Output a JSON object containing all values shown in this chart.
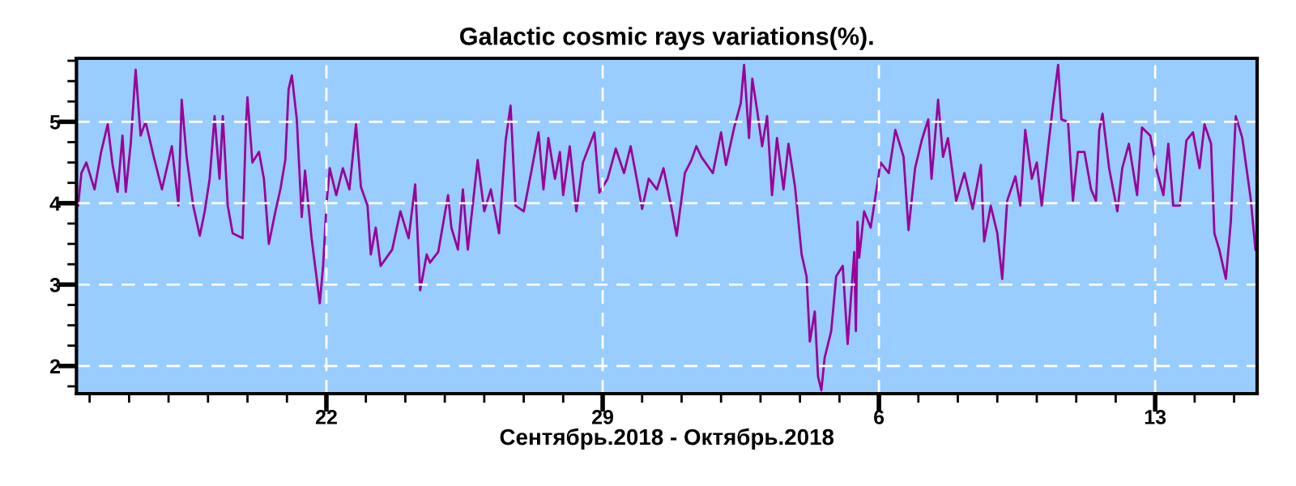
{
  "chart_data": {
    "type": "line",
    "title": "Galactic cosmic rays variations(%).",
    "xlabel": "Сентябрь.2018 - Октябрь.2018",
    "xlim": [
      "2018-09-15T16:00",
      "2018-10-15T14:00"
    ],
    "ylim": [
      1.66,
      5.78
    ],
    "xticks": [
      {
        "value": "2018-09-16",
        "label": null
      },
      {
        "value": "2018-09-17",
        "label": null
      },
      {
        "value": "2018-09-18",
        "label": null
      },
      {
        "value": "2018-09-19",
        "label": null
      },
      {
        "value": "2018-09-20",
        "label": null
      },
      {
        "value": "2018-09-21",
        "label": null
      },
      {
        "value": "2018-09-22",
        "label": "22"
      },
      {
        "value": "2018-09-23",
        "label": null
      },
      {
        "value": "2018-09-24",
        "label": null
      },
      {
        "value": "2018-09-25",
        "label": null
      },
      {
        "value": "2018-09-26",
        "label": null
      },
      {
        "value": "2018-09-27",
        "label": null
      },
      {
        "value": "2018-09-28",
        "label": null
      },
      {
        "value": "2018-09-29",
        "label": "29"
      },
      {
        "value": "2018-09-30",
        "label": null
      },
      {
        "value": "2018-10-01",
        "label": null
      },
      {
        "value": "2018-10-02",
        "label": null
      },
      {
        "value": "2018-10-03",
        "label": null
      },
      {
        "value": "2018-10-04",
        "label": null
      },
      {
        "value": "2018-10-05",
        "label": null
      },
      {
        "value": "2018-10-06",
        "label": "6"
      },
      {
        "value": "2018-10-07",
        "label": null
      },
      {
        "value": "2018-10-08",
        "label": null
      },
      {
        "value": "2018-10-09",
        "label": null
      },
      {
        "value": "2018-10-10",
        "label": null
      },
      {
        "value": "2018-10-11",
        "label": null
      },
      {
        "value": "2018-10-12",
        "label": null
      },
      {
        "value": "2018-10-13",
        "label": "13"
      },
      {
        "value": "2018-10-14",
        "label": null
      },
      {
        "value": "2018-10-15",
        "label": null
      }
    ],
    "yticks": [
      {
        "value": 1.75,
        "label": null
      },
      2,
      {
        "value": 2.25,
        "label": null
      },
      {
        "value": 2.5,
        "label": null
      },
      {
        "value": 2.75,
        "label": null
      },
      3,
      {
        "value": 3.25,
        "label": null
      },
      {
        "value": 3.5,
        "label": null
      },
      {
        "value": 3.75,
        "label": null
      },
      4,
      {
        "value": 4.25,
        "label": null
      },
      {
        "value": 4.5,
        "label": null
      },
      {
        "value": 4.75,
        "label": null
      },
      5,
      {
        "value": 5.25,
        "label": null
      },
      {
        "value": 5.5,
        "label": null
      },
      {
        "value": 5.75,
        "label": null
      }
    ],
    "grid": true,
    "line_style": "solid",
    "marker": "none",
    "series": [
      {
        "color": "#990099",
        "x": [
          "2018-09-15T17:00",
          "2018-09-15T19:00",
          "2018-09-15T22:00",
          "2018-09-16T03:00",
          "2018-09-16T07:00",
          "2018-09-16T11:00",
          "2018-09-16T14:00",
          "2018-09-16T17:00",
          "2018-09-16T20:00",
          "2018-09-16T22:00",
          "2018-09-17T01:00",
          "2018-09-17T04:00",
          "2018-09-17T07:00",
          "2018-09-17T10:00",
          "2018-09-17T12:00",
          "2018-09-17T15:00",
          "2018-09-17T20:00",
          "2018-09-18T02:00",
          "2018-09-18T06:00",
          "2018-09-18T08:00",
          "2018-09-18T11:00",
          "2018-09-18T15:00",
          "2018-09-18T19:00",
          "2018-09-18T22:00",
          "2018-09-19T01:00",
          "2018-09-19T04:00",
          "2018-09-19T07:00",
          "2018-09-19T09:00",
          "2018-09-19T12:00",
          "2018-09-19T15:00",
          "2018-09-19T21:00",
          "2018-09-19T23:00",
          "2018-09-20T00:00",
          "2018-09-20T03:00",
          "2018-09-20T07:00",
          "2018-09-20T10:00",
          "2018-09-20T13:00",
          "2018-09-20T17:00",
          "2018-09-20T20:00",
          "2018-09-20T23:00",
          "2018-09-21T01:00",
          "2018-09-21T03:00",
          "2018-09-21T06:00",
          "2018-09-21T09:00",
          "2018-09-21T11:00",
          "2018-09-21T15:00",
          "2018-09-21T20:00",
          "2018-09-21T22:00",
          "2018-09-22T00:00",
          "2018-09-22T02:00",
          "2018-09-22T06:00",
          "2018-09-22T10:00",
          "2018-09-22T14:00",
          "2018-09-22T18:00",
          "2018-09-22T21:00",
          "2018-09-23T01:00",
          "2018-09-23T03:00",
          "2018-09-23T06:00",
          "2018-09-23T09:00",
          "2018-09-23T16:00",
          "2018-09-23T21:00",
          "2018-09-24T02:00",
          "2018-09-24T06:00",
          "2018-09-24T09:00",
          "2018-09-24T13:00",
          "2018-09-24T15:00",
          "2018-09-24T20:00",
          "2018-09-25T02:00",
          "2018-09-25T04:00",
          "2018-09-25T08:00",
          "2018-09-25T11:00",
          "2018-09-25T14:00",
          "2018-09-25T20:00",
          "2018-09-26T00:00",
          "2018-09-26T04:00",
          "2018-09-26T09:00",
          "2018-09-26T13:00",
          "2018-09-26T16:00",
          "2018-09-26T19:00",
          "2018-09-27T00:00",
          "2018-09-27T05:00",
          "2018-09-27T09:00",
          "2018-09-27T12:00",
          "2018-09-27T15:00",
          "2018-09-27T19:00",
          "2018-09-27T22:00",
          "2018-09-28T00:00",
          "2018-09-28T04:00",
          "2018-09-28T08:00",
          "2018-09-28T12:00",
          "2018-09-28T19:00",
          "2018-09-28T22:00",
          "2018-09-29T03:00",
          "2018-09-29T08:00",
          "2018-09-29T13:00",
          "2018-09-29T17:00",
          "2018-09-29T21:00",
          "2018-09-30T00:00",
          "2018-09-30T04:00",
          "2018-09-30T09:00",
          "2018-09-30T13:00",
          "2018-09-30T18:00",
          "2018-09-30T21:00",
          "2018-10-01T02:00",
          "2018-10-01T06:00",
          "2018-10-01T09:00",
          "2018-10-01T12:00",
          "2018-10-01T19:00",
          "2018-10-02T00:00",
          "2018-10-02T03:00",
          "2018-10-02T08:00",
          "2018-10-02T12:00",
          "2018-10-02T14:00",
          "2018-10-02T17:00",
          "2018-10-02T19:00",
          "2018-10-02T22:00",
          "2018-10-03T01:00",
          "2018-10-03T04:00",
          "2018-10-03T07:00",
          "2018-10-03T10:00",
          "2018-10-03T14:00",
          "2018-10-03T17:00",
          "2018-10-03T21:00",
          "2018-10-04T01:00",
          "2018-10-04T04:00",
          "2018-10-04T06:00",
          "2018-10-04T09:00",
          "2018-10-04T11:00",
          "2018-10-04T13:00",
          "2018-10-04T15:00",
          "2018-10-04T19:00",
          "2018-10-04T22:00",
          "2018-10-05T02:00",
          "2018-10-05T05:00",
          "2018-10-05T09:00",
          "2018-10-05T10:00",
          "2018-10-05T11:00",
          "2018-10-05T12:00",
          "2018-10-05T15:00",
          "2018-10-05T19:00",
          "2018-10-05T22:00",
          "2018-10-06T01:00",
          "2018-10-06T06:00",
          "2018-10-06T10:00",
          "2018-10-06T15:00",
          "2018-10-06T18:00",
          "2018-10-06T22:00",
          "2018-10-07T02:00",
          "2018-10-07T06:00",
          "2018-10-07T08:00",
          "2018-10-07T12:00",
          "2018-10-07T15:00",
          "2018-10-07T18:00",
          "2018-10-07T23:00",
          "2018-10-08T04:00",
          "2018-10-08T09:00",
          "2018-10-08T14:00",
          "2018-10-08T16:00",
          "2018-10-08T20:00",
          "2018-10-09T00:00",
          "2018-10-09T03:00",
          "2018-10-09T06:00",
          "2018-10-09T11:00",
          "2018-10-09T14:00",
          "2018-10-09T17:00",
          "2018-10-09T21:00",
          "2018-10-10T00:00",
          "2018-10-10T03:00",
          "2018-10-10T07:00",
          "2018-10-10T10:00",
          "2018-10-10T13:00",
          "2018-10-10T15:00",
          "2018-10-10T19:00",
          "2018-10-10T22:00",
          "2018-10-11T01:00",
          "2018-10-11T05:00",
          "2018-10-11T09:00",
          "2018-10-11T12:00",
          "2018-10-11T14:00",
          "2018-10-11T16:00",
          "2018-10-11T20:00",
          "2018-10-12T01:00",
          "2018-10-12T04:00",
          "2018-10-12T08:00",
          "2018-10-12T13:00",
          "2018-10-12T16:00",
          "2018-10-12T21:00",
          "2018-10-13T01:00",
          "2018-10-13T05:00",
          "2018-10-13T08:00",
          "2018-10-13T11:00",
          "2018-10-13T15:00",
          "2018-10-13T19:00",
          "2018-10-13T23:00",
          "2018-10-14T03:00",
          "2018-10-14T06:00",
          "2018-10-14T10:00",
          "2018-10-14T12:00",
          "2018-10-14T15:00",
          "2018-10-14T19:00",
          "2018-10-14T22:00",
          "2018-10-15T01:00",
          "2018-10-15T05:00",
          "2018-10-15T10:00",
          "2018-10-15T13:00"
        ],
        "values": [
          3.97,
          4.37,
          4.5,
          4.17,
          4.63,
          4.97,
          4.47,
          4.14,
          4.83,
          4.14,
          4.73,
          5.64,
          4.83,
          5.0,
          4.83,
          4.57,
          4.17,
          4.7,
          3.97,
          5.27,
          4.57,
          3.97,
          3.6,
          3.9,
          4.3,
          5.07,
          4.3,
          5.07,
          3.97,
          3.63,
          3.57,
          4.93,
          5.3,
          4.5,
          4.63,
          4.3,
          3.5,
          3.9,
          4.17,
          4.53,
          5.4,
          5.57,
          5.03,
          3.83,
          4.4,
          3.57,
          2.77,
          3.23,
          3.97,
          4.43,
          4.1,
          4.43,
          4.17,
          4.97,
          4.2,
          3.97,
          3.37,
          3.7,
          3.23,
          3.43,
          3.9,
          3.57,
          4.23,
          2.93,
          3.37,
          3.27,
          3.4,
          4.1,
          3.7,
          3.43,
          4.17,
          3.43,
          4.53,
          3.9,
          4.17,
          3.63,
          4.77,
          5.2,
          3.97,
          3.9,
          4.43,
          4.87,
          4.17,
          4.8,
          4.3,
          4.63,
          4.1,
          4.7,
          3.9,
          4.5,
          4.87,
          4.13,
          4.3,
          4.67,
          4.37,
          4.7,
          4.27,
          3.93,
          4.3,
          4.17,
          4.43,
          3.93,
          3.6,
          4.37,
          4.53,
          4.7,
          4.57,
          4.37,
          4.87,
          4.47,
          4.93,
          5.23,
          5.7,
          4.8,
          5.53,
          5.13,
          4.7,
          5.07,
          4.1,
          4.8,
          4.17,
          4.73,
          4.2,
          3.37,
          3.1,
          2.3,
          2.67,
          1.87,
          1.7,
          2.1,
          2.43,
          3.1,
          3.23,
          2.27,
          3.4,
          2.43,
          3.77,
          3.33,
          3.9,
          3.7,
          4.1,
          4.5,
          4.37,
          4.9,
          4.57,
          3.67,
          4.43,
          4.77,
          5.03,
          4.3,
          5.27,
          4.57,
          4.8,
          4.03,
          4.37,
          3.93,
          4.47,
          3.53,
          3.97,
          3.63,
          3.07,
          4.03,
          4.33,
          3.97,
          4.9,
          4.3,
          4.5,
          3.97,
          4.7,
          5.23,
          5.7,
          5.03,
          5.0,
          4.03,
          4.63,
          4.63,
          4.17,
          4.03,
          4.9,
          5.1,
          4.43,
          3.9,
          4.43,
          4.73,
          4.1,
          4.93,
          4.83,
          4.4,
          4.1,
          4.73,
          3.97,
          3.97,
          4.77,
          4.87,
          4.43,
          4.97,
          4.73,
          3.63,
          3.43,
          3.07,
          3.77,
          5.07,
          4.8,
          4.07,
          3.43
        ]
      }
    ]
  }
}
